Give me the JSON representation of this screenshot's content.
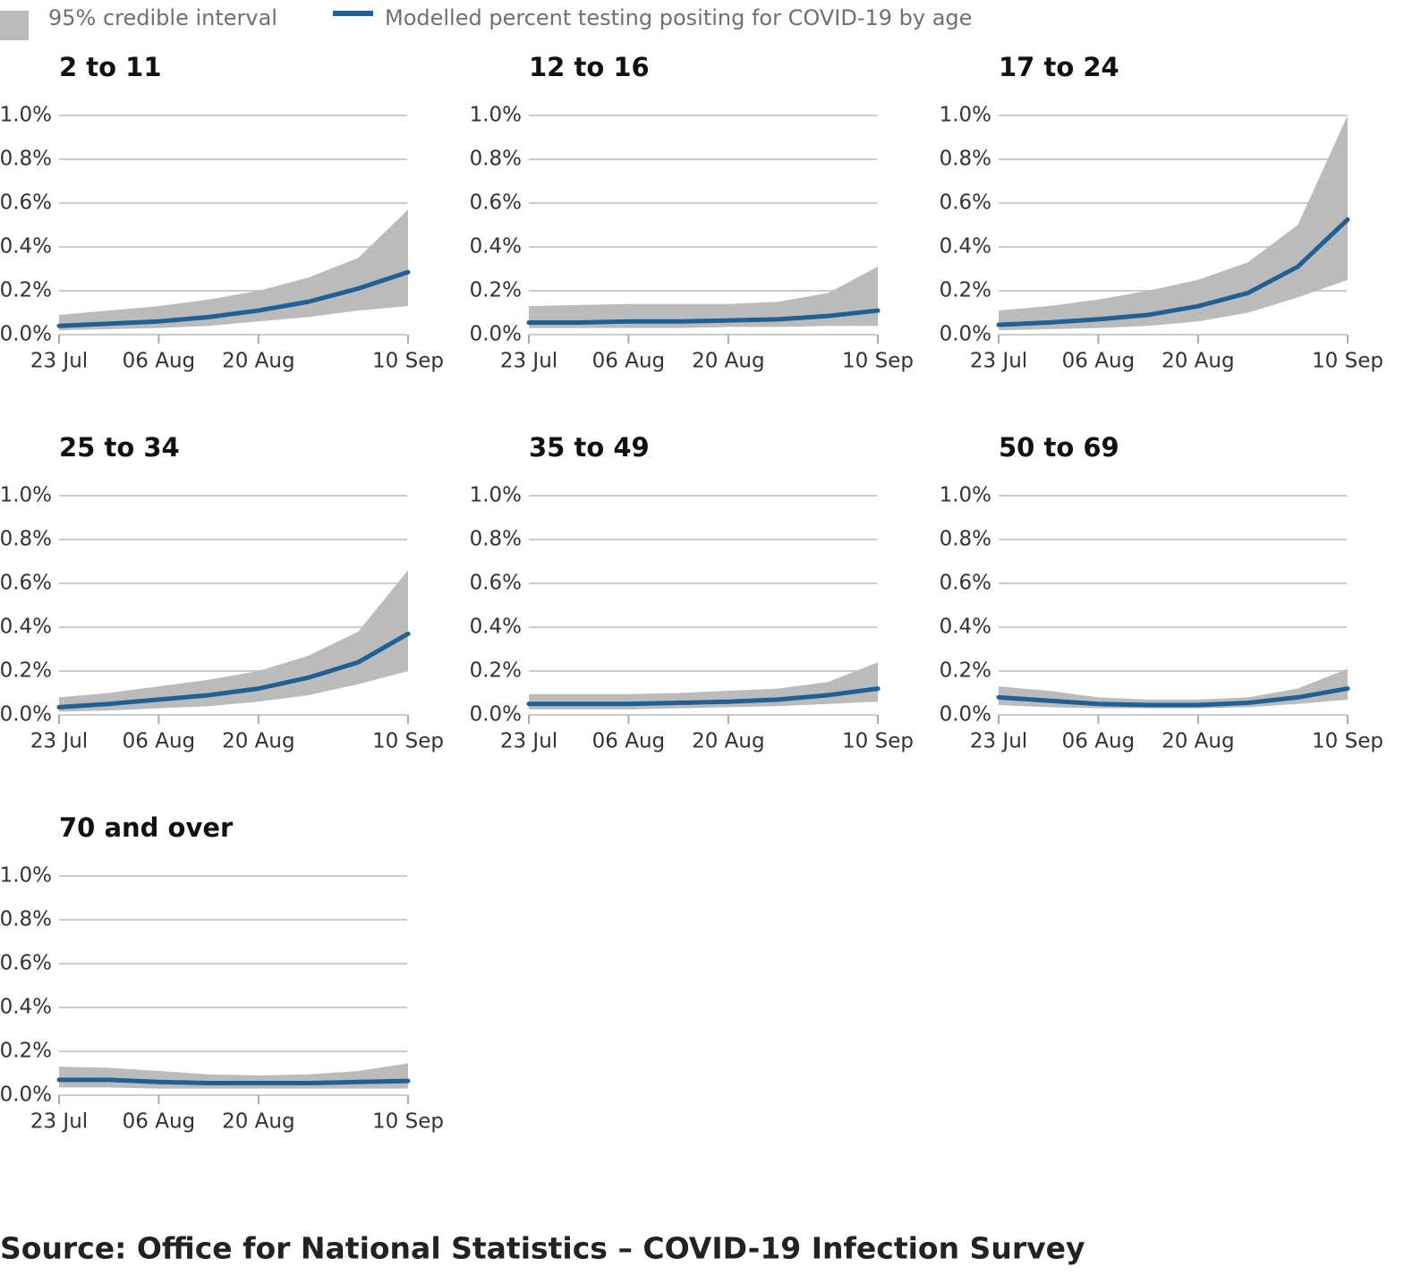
{
  "legend": {
    "interval": {
      "name": "95% credible interval",
      "color": "#bbbbbb"
    },
    "line": {
      "name": "Modelled percent testing positing for COVID-19 by age",
      "color": "#206095"
    }
  },
  "source": "Source: Office for National Statistics – COVID-19 Infection Survey",
  "chart_data": [
    {
      "type": "line",
      "title": "2 to 11",
      "x": [
        "23 Jul",
        "30 Jul",
        "06 Aug",
        "13 Aug",
        "20 Aug",
        "27 Aug",
        "03 Sep",
        "10 Sep"
      ],
      "xticks": [
        "23 Jul",
        "06 Aug",
        "20 Aug",
        "10 Sep"
      ],
      "values": [
        0.04,
        0.05,
        0.06,
        0.08,
        0.11,
        0.15,
        0.21,
        0.285
      ],
      "upper": [
        0.09,
        0.11,
        0.13,
        0.16,
        0.2,
        0.26,
        0.35,
        0.57
      ],
      "lower": [
        0.02,
        0.025,
        0.03,
        0.04,
        0.06,
        0.08,
        0.11,
        0.13
      ],
      "ylim": [
        0,
        1.0
      ],
      "yticks": [
        {
          "value": 0,
          "label": "0.0%"
        },
        {
          "value": 0.2,
          "label": "0.2%"
        },
        {
          "value": 0.4,
          "label": "0.4%"
        },
        {
          "value": 0.6,
          "label": "0.6%"
        },
        {
          "value": 0.8,
          "label": "0.8%"
        },
        {
          "value": 1.0,
          "label": "1.0%"
        }
      ],
      "grid": true
    },
    {
      "type": "line",
      "title": "12 to 16",
      "x": [
        "23 Jul",
        "30 Jul",
        "06 Aug",
        "13 Aug",
        "20 Aug",
        "27 Aug",
        "03 Sep",
        "10 Sep"
      ],
      "xticks": [
        "23 Jul",
        "06 Aug",
        "20 Aug",
        "10 Sep"
      ],
      "values": [
        0.055,
        0.055,
        0.06,
        0.06,
        0.065,
        0.07,
        0.085,
        0.11
      ],
      "upper": [
        0.13,
        0.135,
        0.14,
        0.14,
        0.14,
        0.15,
        0.19,
        0.31
      ],
      "lower": [
        0.03,
        0.03,
        0.03,
        0.03,
        0.035,
        0.035,
        0.04,
        0.04
      ],
      "ylim": [
        0,
        1.0
      ],
      "yticks": [
        {
          "value": 0,
          "label": "0.0%"
        },
        {
          "value": 0.2,
          "label": "0.2%"
        },
        {
          "value": 0.4,
          "label": "0.4%"
        },
        {
          "value": 0.6,
          "label": "0.6%"
        },
        {
          "value": 0.8,
          "label": "0.8%"
        },
        {
          "value": 1.0,
          "label": "1.0%"
        }
      ],
      "grid": true
    },
    {
      "type": "line",
      "title": "17 to 24",
      "x": [
        "23 Jul",
        "30 Jul",
        "06 Aug",
        "13 Aug",
        "20 Aug",
        "27 Aug",
        "03 Sep",
        "10 Sep"
      ],
      "xticks": [
        "23 Jul",
        "06 Aug",
        "20 Aug",
        "10 Sep"
      ],
      "values": [
        0.045,
        0.055,
        0.07,
        0.09,
        0.13,
        0.19,
        0.31,
        0.525
      ],
      "upper": [
        0.11,
        0.13,
        0.16,
        0.2,
        0.25,
        0.33,
        0.5,
        1.0
      ],
      "lower": [
        0.02,
        0.025,
        0.03,
        0.04,
        0.06,
        0.1,
        0.17,
        0.25
      ],
      "ylim": [
        0,
        1.0
      ],
      "yticks": [
        {
          "value": 0,
          "label": "0.0%"
        },
        {
          "value": 0.2,
          "label": "0.2%"
        },
        {
          "value": 0.4,
          "label": "0.4%"
        },
        {
          "value": 0.6,
          "label": "0.6%"
        },
        {
          "value": 0.8,
          "label": "0.8%"
        },
        {
          "value": 1.0,
          "label": "1.0%"
        }
      ],
      "grid": true
    },
    {
      "type": "line",
      "title": "25 to 34",
      "x": [
        "23 Jul",
        "30 Jul",
        "06 Aug",
        "13 Aug",
        "20 Aug",
        "27 Aug",
        "03 Sep",
        "10 Sep"
      ],
      "xticks": [
        "23 Jul",
        "06 Aug",
        "20 Aug",
        "10 Sep"
      ],
      "values": [
        0.035,
        0.05,
        0.07,
        0.09,
        0.12,
        0.17,
        0.24,
        0.37
      ],
      "upper": [
        0.08,
        0.1,
        0.13,
        0.16,
        0.2,
        0.27,
        0.38,
        0.66
      ],
      "lower": [
        0.015,
        0.02,
        0.03,
        0.04,
        0.06,
        0.09,
        0.14,
        0.2
      ],
      "ylim": [
        0,
        1.0
      ],
      "yticks": [
        {
          "value": 0,
          "label": "0.0%"
        },
        {
          "value": 0.2,
          "label": "0.2%"
        },
        {
          "value": 0.4,
          "label": "0.4%"
        },
        {
          "value": 0.6,
          "label": "0.6%"
        },
        {
          "value": 0.8,
          "label": "0.8%"
        },
        {
          "value": 1.0,
          "label": "1.0%"
        }
      ],
      "grid": true
    },
    {
      "type": "line",
      "title": "35 to 49",
      "x": [
        "23 Jul",
        "30 Jul",
        "06 Aug",
        "13 Aug",
        "20 Aug",
        "27 Aug",
        "03 Sep",
        "10 Sep"
      ],
      "xticks": [
        "23 Jul",
        "06 Aug",
        "20 Aug",
        "10 Sep"
      ],
      "values": [
        0.05,
        0.05,
        0.05,
        0.055,
        0.06,
        0.07,
        0.09,
        0.12
      ],
      "upper": [
        0.095,
        0.095,
        0.095,
        0.1,
        0.11,
        0.12,
        0.15,
        0.24
      ],
      "lower": [
        0.025,
        0.025,
        0.025,
        0.03,
        0.035,
        0.04,
        0.05,
        0.06
      ],
      "ylim": [
        0,
        1.0
      ],
      "yticks": [
        {
          "value": 0,
          "label": "0.0%"
        },
        {
          "value": 0.2,
          "label": "0.2%"
        },
        {
          "value": 0.4,
          "label": "0.4%"
        },
        {
          "value": 0.6,
          "label": "0.6%"
        },
        {
          "value": 0.8,
          "label": "0.8%"
        },
        {
          "value": 1.0,
          "label": "1.0%"
        }
      ],
      "grid": true
    },
    {
      "type": "line",
      "title": "50 to 69",
      "x": [
        "23 Jul",
        "30 Jul",
        "06 Aug",
        "13 Aug",
        "20 Aug",
        "27 Aug",
        "03 Sep",
        "10 Sep"
      ],
      "xticks": [
        "23 Jul",
        "06 Aug",
        "20 Aug",
        "10 Sep"
      ],
      "values": [
        0.08,
        0.065,
        0.05,
        0.045,
        0.045,
        0.055,
        0.08,
        0.12
      ],
      "upper": [
        0.13,
        0.11,
        0.08,
        0.07,
        0.07,
        0.08,
        0.12,
        0.21
      ],
      "lower": [
        0.045,
        0.035,
        0.03,
        0.03,
        0.03,
        0.035,
        0.05,
        0.07
      ],
      "ylim": [
        0,
        1.0
      ],
      "yticks": [
        {
          "value": 0,
          "label": "0.0%"
        },
        {
          "value": 0.2,
          "label": "0.2%"
        },
        {
          "value": 0.4,
          "label": "0.4%"
        },
        {
          "value": 0.6,
          "label": "0.6%"
        },
        {
          "value": 0.8,
          "label": "0.8%"
        },
        {
          "value": 1.0,
          "label": "1.0%"
        }
      ],
      "grid": true
    },
    {
      "type": "line",
      "title": "70 and over",
      "x": [
        "23 Jul",
        "30 Jul",
        "06 Aug",
        "13 Aug",
        "20 Aug",
        "27 Aug",
        "03 Sep",
        "10 Sep"
      ],
      "xticks": [
        "23 Jul",
        "06 Aug",
        "20 Aug",
        "10 Sep"
      ],
      "values": [
        0.07,
        0.07,
        0.06,
        0.055,
        0.055,
        0.055,
        0.06,
        0.065
      ],
      "upper": [
        0.13,
        0.125,
        0.11,
        0.095,
        0.09,
        0.095,
        0.11,
        0.145
      ],
      "lower": [
        0.035,
        0.035,
        0.03,
        0.03,
        0.03,
        0.03,
        0.03,
        0.03
      ],
      "ylim": [
        0,
        1.0
      ],
      "yticks": [
        {
          "value": 0,
          "label": "0.0%"
        },
        {
          "value": 0.2,
          "label": "0.2%"
        },
        {
          "value": 0.4,
          "label": "0.4%"
        },
        {
          "value": 0.6,
          "label": "0.6%"
        },
        {
          "value": 0.8,
          "label": "0.8%"
        },
        {
          "value": 1.0,
          "label": "1.0%"
        }
      ],
      "grid": true
    }
  ]
}
